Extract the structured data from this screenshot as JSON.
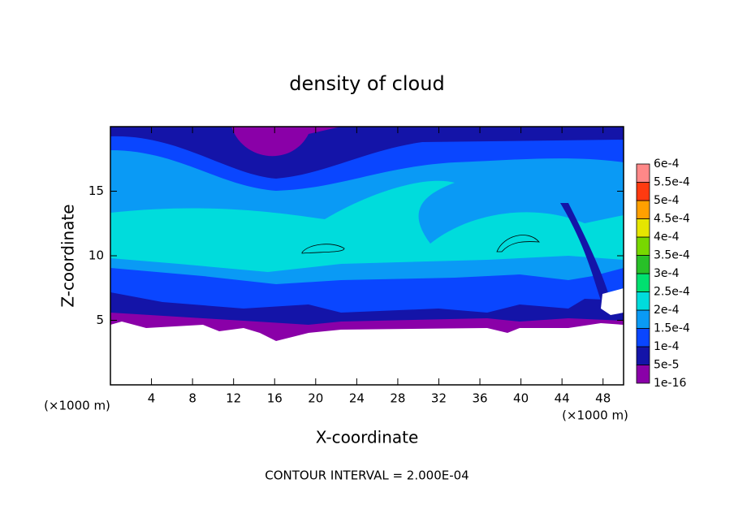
{
  "chart_data": {
    "type": "contour",
    "title": "density of cloud",
    "x_label": "X-coordinate",
    "y_label": "Z-coordinate",
    "x_unit": "(×1000 m)",
    "x_unit_right": "(×1000 m)",
    "footer": "CONTOUR INTERVAL = 2.000E-04",
    "xlim": [
      0,
      50
    ],
    "xticks": [
      4,
      8,
      12,
      16,
      20,
      24,
      28,
      32,
      36,
      40,
      44,
      48
    ],
    "ylim": [
      0,
      20
    ],
    "yticks": [
      5,
      10,
      15
    ],
    "levels": [
      {
        "value": 1e-16,
        "label": "1e-16"
      },
      {
        "value": 5e-05,
        "label": "5e-5"
      },
      {
        "value": 0.0001,
        "label": "1e-4"
      },
      {
        "value": 0.00015,
        "label": "1.5e-4"
      },
      {
        "value": 0.0002,
        "label": "2e-4"
      },
      {
        "value": 0.00025,
        "label": "2.5e-4"
      },
      {
        "value": 0.0003,
        "label": "3e-4"
      },
      {
        "value": 0.00035,
        "label": "3.5e-4"
      },
      {
        "value": 0.0004,
        "label": "4e-4"
      },
      {
        "value": 0.00045,
        "label": "4.5e-4"
      },
      {
        "value": 0.0005,
        "label": "5e-4"
      },
      {
        "value": 0.00055,
        "label": "5.5e-4"
      },
      {
        "value": 0.0006,
        "label": "6e-4"
      }
    ],
    "colors": [
      "#8a00a8",
      "#1414a8",
      "#0a46ff",
      "#0a9af5",
      "#00dcdc",
      "#00e070",
      "#28c028",
      "#78d800",
      "#e6e600",
      "#ffa000",
      "#ff3a10",
      "#ff8888"
    ]
  }
}
